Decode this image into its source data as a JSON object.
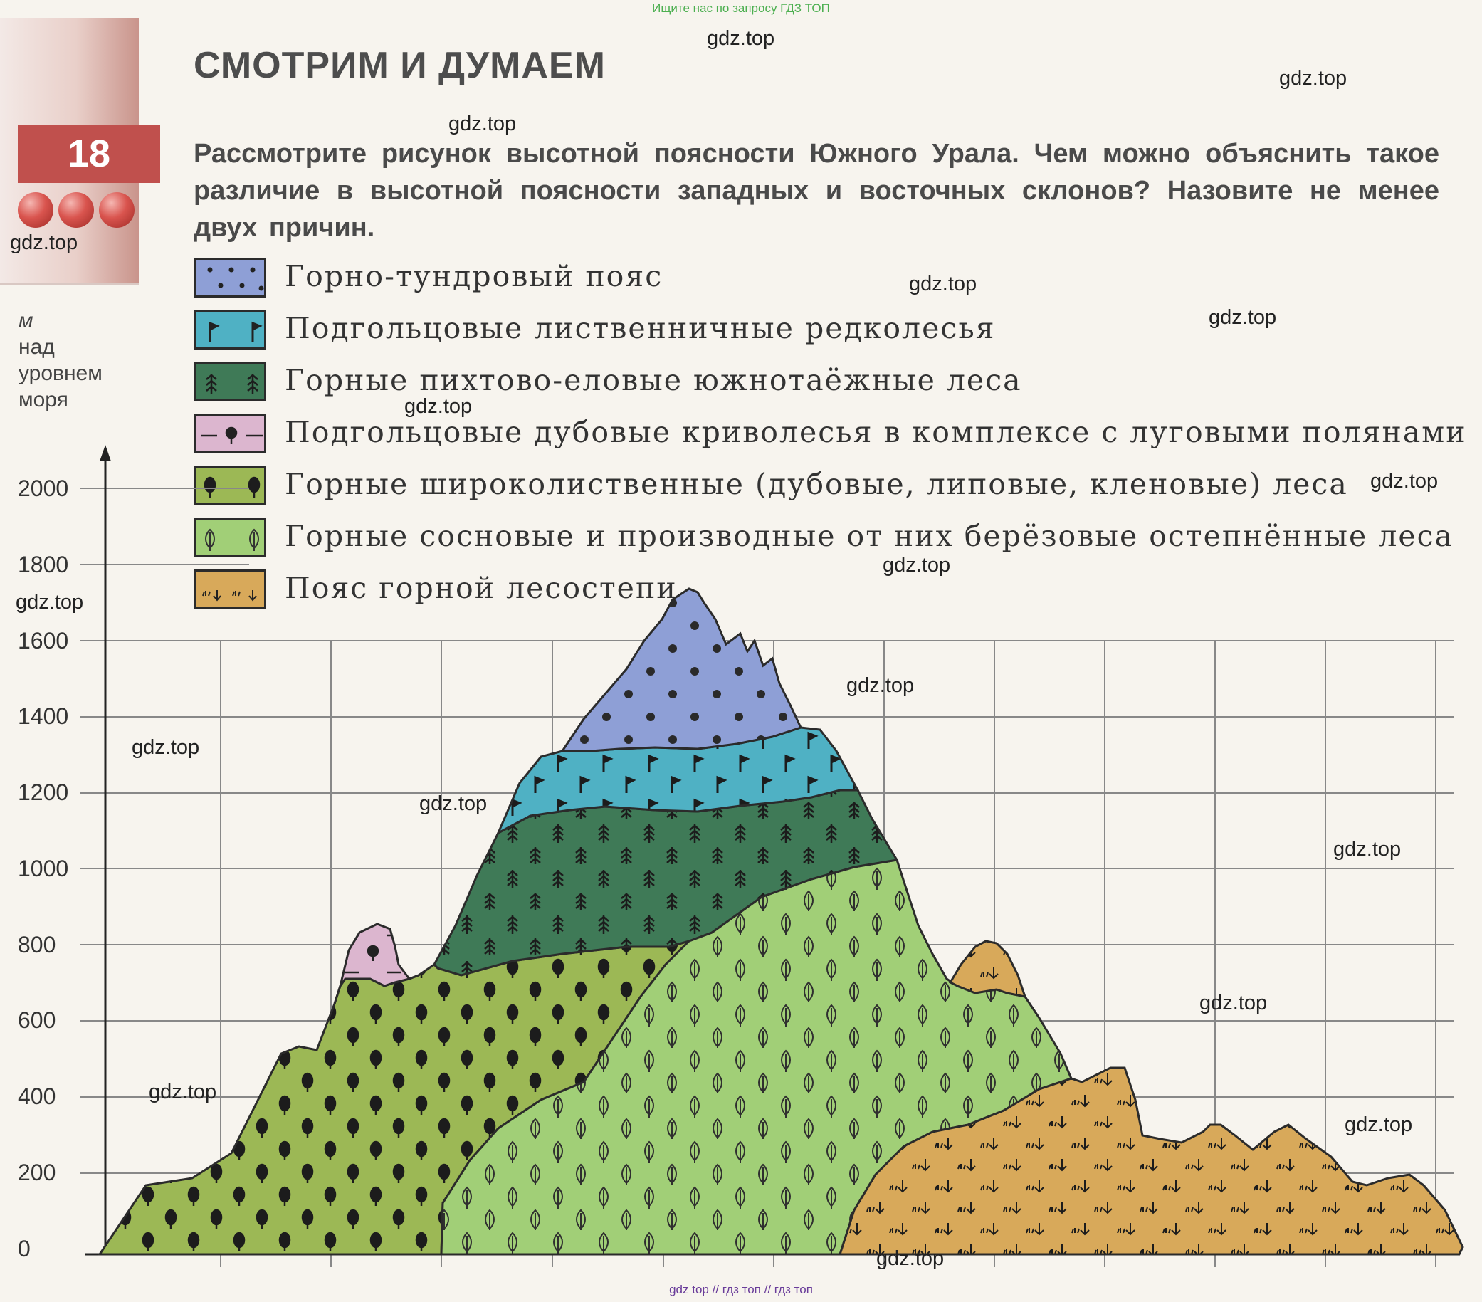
{
  "top_note": "Ищите нас по запросу ГДЗ ТОП",
  "bottom_note": "gdz top  //  гдз топ  //  гдз топ",
  "section_title": "СМОТРИМ И ДУМАЕМ",
  "task_number": "18",
  "question": "Рассмотрите рисунок высотной поясности Южного Урала. Чем можно объяснить такое различие в высотной поясности западных и восточных склонов? Назовите не менее двух причин.",
  "legend": [
    {
      "label": "Горно-тундровый пояс",
      "color": "#8e9fd6",
      "icon": "dots"
    },
    {
      "label": "Подгольцовые лиственничные редколесья",
      "color": "#4fb1c4",
      "icon": "flag"
    },
    {
      "label": "Горные пихтово-еловые южнотаёжные леса",
      "color": "#3f7a57",
      "icon": "fir-tree"
    },
    {
      "label": "Подгольцовые дубовые криволесья в комплексе с луговыми полянами",
      "color": "#dcb6cf",
      "icon": "crooked-oak"
    },
    {
      "label": "Горные широколиственные (дубовые, липовые, кленовые) леса",
      "color": "#9cb855",
      "icon": "broadleaf-tree"
    },
    {
      "label": "Горные сосновые и производные от них берёзовые остепнённые леса",
      "color": "#a1cf77",
      "icon": "leaf"
    },
    {
      "label": "Пояс горной лесостепи",
      "color": "#d8a95a",
      "icon": "steppe-grass"
    }
  ],
  "axis": {
    "unit_lines": [
      "м",
      "над",
      "уровнем",
      "моря"
    ],
    "ticks": [
      "2000",
      "1800",
      "1600",
      "1400",
      "1200",
      "1000",
      "800",
      "600",
      "400",
      "200",
      "0"
    ],
    "range": [
      0,
      2000
    ]
  },
  "watermark": "gdz.top"
}
